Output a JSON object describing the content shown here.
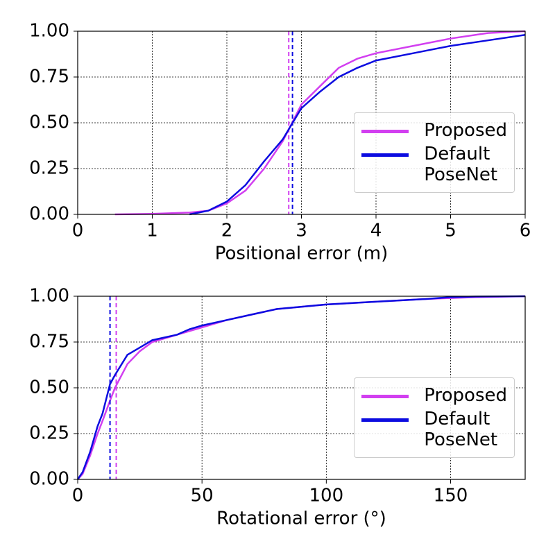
{
  "chart_data": [
    {
      "type": "line",
      "xlabel": "Positional error (m)",
      "x": [
        0.5,
        1,
        1.5,
        1.75,
        2,
        2.25,
        2.5,
        2.75,
        3,
        3.25,
        3.5,
        3.75,
        4,
        4.5,
        5,
        5.5,
        6
      ],
      "series": [
        {
          "name": "Proposed",
          "color": "#d23ff0",
          "median": 2.83,
          "values": [
            0,
            0.003,
            0.01,
            0.02,
            0.06,
            0.13,
            0.25,
            0.4,
            0.6,
            0.7,
            0.8,
            0.85,
            0.88,
            0.92,
            0.96,
            0.99,
            1.0
          ]
        },
        {
          "name": "Default\nPoseNet",
          "color": "#0c0ce0",
          "median": 2.88,
          "values": [
            null,
            null,
            0.0,
            0.02,
            0.07,
            0.16,
            0.29,
            0.41,
            0.58,
            0.67,
            0.75,
            0.8,
            0.84,
            0.88,
            0.92,
            0.95,
            0.98
          ]
        }
      ],
      "xlim": [
        0,
        6
      ],
      "xticks": [
        0,
        1,
        2,
        3,
        4,
        5,
        6
      ],
      "ylim": [
        0,
        1
      ],
      "yticks": [
        {
          "value": 0,
          "label": "0.00"
        },
        {
          "value": 0.25,
          "label": "0.25"
        },
        {
          "value": 0.5,
          "label": "0.50"
        },
        {
          "value": 0.75,
          "label": "0.75"
        },
        {
          "value": 1,
          "label": "1.00"
        }
      ],
      "grid": true,
      "legend": "lower right"
    },
    {
      "type": "line",
      "xlabel": "Rotational error (°)",
      "x": [
        0,
        2,
        5,
        8,
        10,
        13,
        15,
        20,
        25,
        30,
        40,
        45,
        50,
        60,
        70,
        80,
        100,
        120,
        140,
        150,
        160,
        180
      ],
      "series": [
        {
          "name": "Proposed",
          "color": "#d23ff0",
          "median": 15.5,
          "values": [
            0,
            0.03,
            0.13,
            0.25,
            0.32,
            0.43,
            0.5,
            0.63,
            0.7,
            0.75,
            0.79,
            0.81,
            0.83,
            0.87,
            0.9,
            0.93,
            0.955,
            0.97,
            0.985,
            0.99,
            0.995,
            1.0
          ]
        },
        {
          "name": "Default\nPoseNet",
          "color": "#0c0ce0",
          "median": 13,
          "values": [
            0,
            0.04,
            0.15,
            0.29,
            0.36,
            0.52,
            0.57,
            0.68,
            0.72,
            0.76,
            0.79,
            0.82,
            0.84,
            0.87,
            0.9,
            0.93,
            0.955,
            0.97,
            0.985,
            0.995,
            0.998,
            1.0
          ]
        }
      ],
      "xlim": [
        0,
        180
      ],
      "xticks": [
        0,
        50,
        100,
        150
      ],
      "ylim": [
        0,
        1
      ],
      "yticks": [
        {
          "value": 0,
          "label": "0.00"
        },
        {
          "value": 0.25,
          "label": "0.25"
        },
        {
          "value": 0.5,
          "label": "0.50"
        },
        {
          "value": 0.75,
          "label": "0.75"
        },
        {
          "value": 1,
          "label": "1.00"
        }
      ],
      "grid": true,
      "legend": "lower right"
    }
  ]
}
